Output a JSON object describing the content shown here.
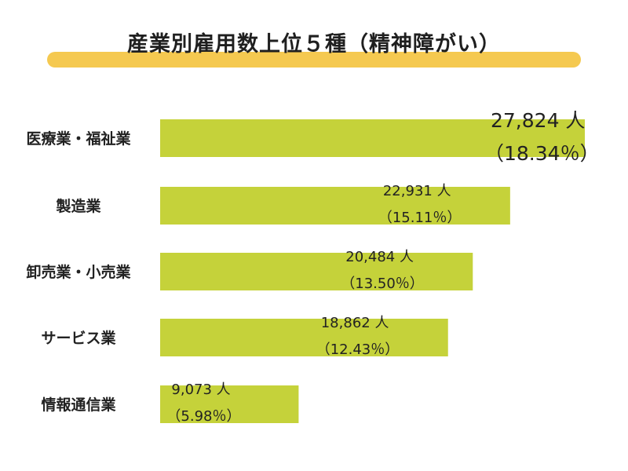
{
  "chart_data": {
    "type": "bar",
    "orientation": "horizontal",
    "title": "産業別雇用数上位５種（精神障がい）",
    "categories": [
      "医療業・福祉業",
      "製造業",
      "卸売業・小売業",
      "サービス業",
      "情報通信業"
    ],
    "values": [
      27824,
      22931,
      20484,
      18862,
      9073
    ],
    "value_labels": [
      "27,824 人",
      "22,931 人",
      "20,484 人",
      "18,862 人",
      "9,073 人"
    ],
    "percent_labels": [
      "（18.34％）",
      "（15.11％）",
      "（13.50％）",
      "（12.43％）",
      "（5.98％）"
    ],
    "xlabel": "",
    "ylabel": "",
    "xlim": [
      0,
      27824
    ],
    "grid": false,
    "legend": "none"
  },
  "colors": {
    "bar": "#c5d23a",
    "title_bar": "#f5c950",
    "text": "#222222"
  }
}
